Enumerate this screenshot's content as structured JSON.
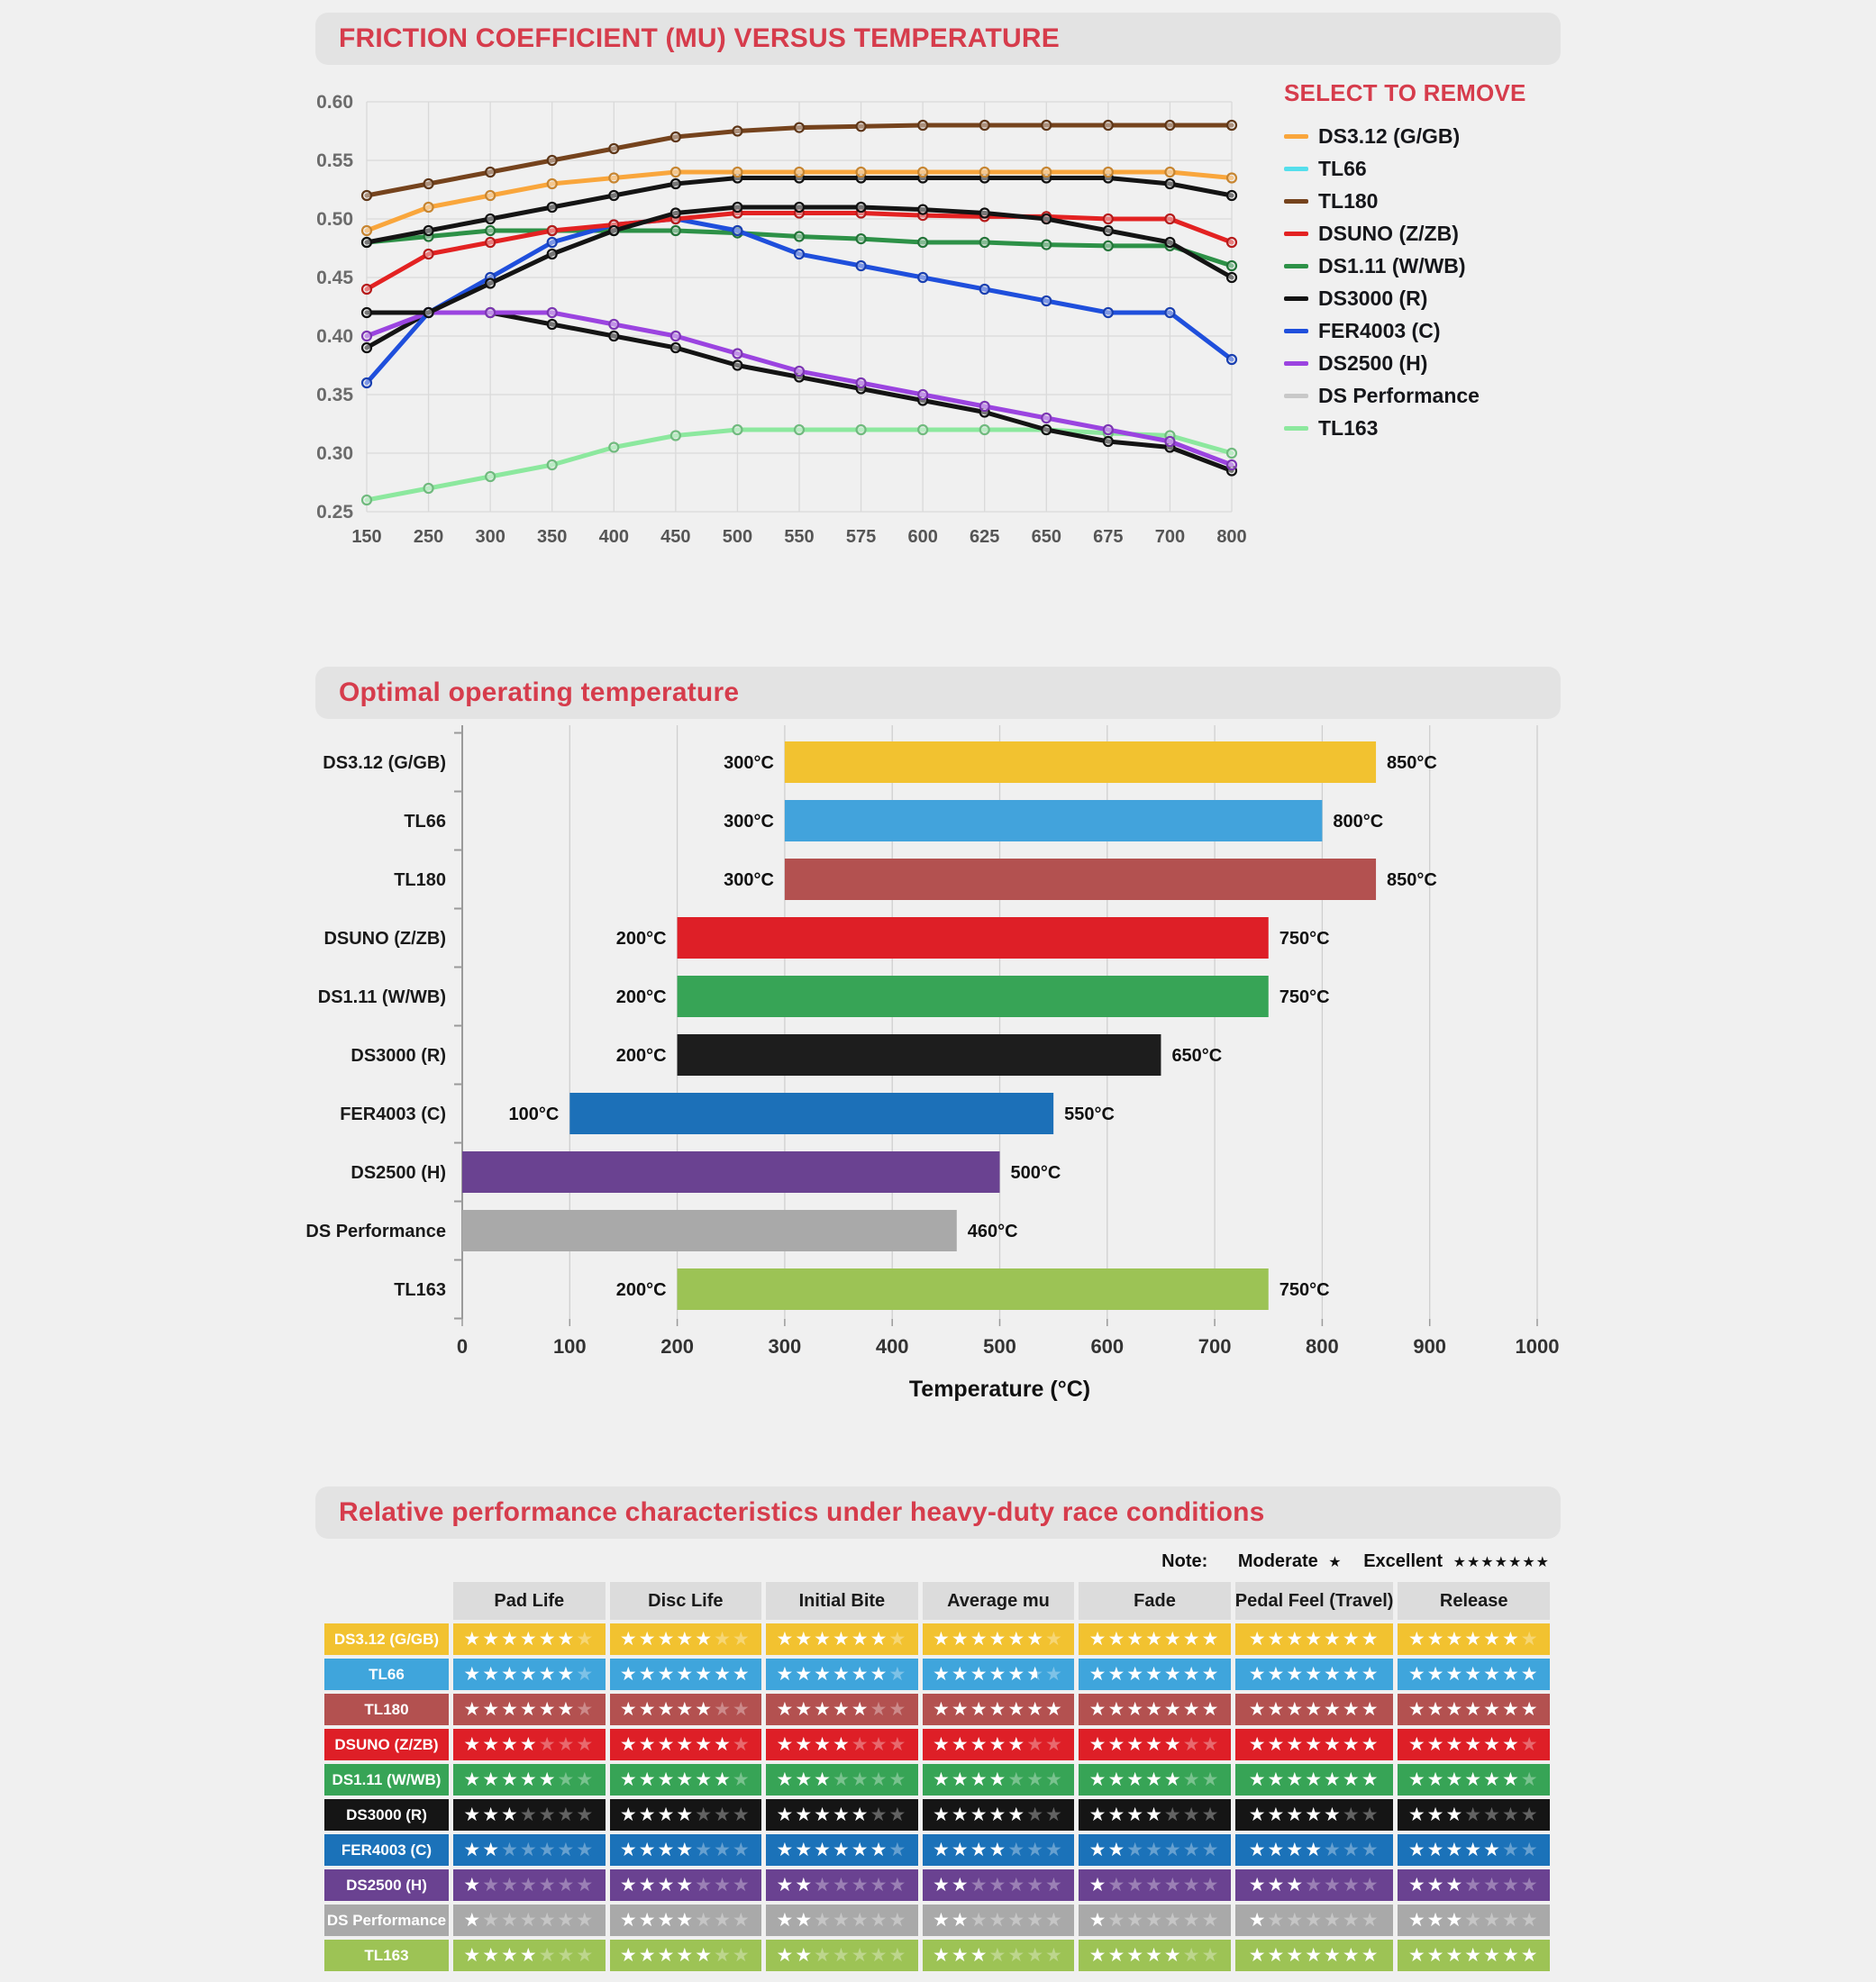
{
  "page": {
    "accent_color": "#d63c4c",
    "background_color": "#f0f0f0"
  },
  "chart_data": [
    {
      "type": "line",
      "title": "FRICTION COEFFICIENT (MU) VERSUS TEMPERATURE",
      "legend_title": "SELECT TO REMOVE",
      "legend_position": "right",
      "grid": true,
      "xlabel": "",
      "ylabel": "",
      "ylim": [
        0.25,
        0.6
      ],
      "y_ticks": [
        0.25,
        0.3,
        0.35,
        0.4,
        0.45,
        0.5,
        0.55,
        0.6
      ],
      "x_categories": [
        150,
        250,
        300,
        350,
        400,
        450,
        500,
        550,
        575,
        600,
        625,
        650,
        675,
        700,
        800
      ],
      "series": [
        {
          "name": "DS3.12 (G/GB)",
          "legend_color": "#f9a63c",
          "line_color": "#f9a63c",
          "values": [
            0.49,
            0.51,
            0.52,
            0.53,
            0.535,
            0.54,
            0.54,
            0.54,
            0.54,
            0.54,
            0.54,
            0.54,
            0.54,
            0.54,
            0.535
          ]
        },
        {
          "name": "TL66",
          "legend_color": "#55dfec",
          "line_color": "#141414",
          "values": [
            0.48,
            0.49,
            0.5,
            0.51,
            0.52,
            0.53,
            0.535,
            0.535,
            0.535,
            0.535,
            0.535,
            0.535,
            0.535,
            0.53,
            0.52
          ]
        },
        {
          "name": "TL180",
          "legend_color": "#75431d",
          "line_color": "#75431d",
          "values": [
            0.52,
            0.53,
            0.54,
            0.55,
            0.56,
            0.57,
            0.575,
            0.578,
            0.579,
            0.58,
            0.58,
            0.58,
            0.58,
            0.58,
            0.58
          ]
        },
        {
          "name": "DSUNO (Z/ZB)",
          "legend_color": "#e32222",
          "line_color": "#e32222",
          "values": [
            0.44,
            0.47,
            0.48,
            0.49,
            0.495,
            0.5,
            0.505,
            0.505,
            0.505,
            0.503,
            0.502,
            0.502,
            0.5,
            0.5,
            0.48
          ]
        },
        {
          "name": "DS1.11 (W/WB)",
          "legend_color": "#2d9147",
          "line_color": "#2d9147",
          "values": [
            0.48,
            0.485,
            0.49,
            0.49,
            0.49,
            0.49,
            0.488,
            0.485,
            0.483,
            0.48,
            0.48,
            0.478,
            0.477,
            0.477,
            0.46
          ]
        },
        {
          "name": "DS3000 (R)",
          "legend_color": "#141414",
          "line_color": "#141414",
          "values": [
            0.42,
            0.42,
            0.445,
            0.47,
            0.49,
            0.505,
            0.51,
            0.51,
            0.51,
            0.508,
            0.505,
            0.5,
            0.49,
            0.48,
            0.45
          ]
        },
        {
          "name": "FER4003 (C)",
          "legend_color": "#1f4fdc",
          "line_color": "#1f4fdc",
          "values": [
            0.36,
            0.42,
            0.45,
            0.48,
            0.495,
            0.5,
            0.49,
            0.47,
            0.46,
            0.45,
            0.44,
            0.43,
            0.42,
            0.42,
            0.38
          ]
        },
        {
          "name": "DS2500 (H)",
          "legend_color": "#9b44e0",
          "line_color": "#9b44e0",
          "values": [
            0.4,
            0.42,
            0.42,
            0.42,
            0.41,
            0.4,
            0.385,
            0.37,
            0.36,
            0.35,
            0.34,
            0.33,
            0.32,
            0.31,
            0.29
          ]
        },
        {
          "name": "DS Performance",
          "legend_color": "#c8c8c8",
          "line_color": "#141414",
          "values": [
            0.39,
            0.42,
            0.42,
            0.41,
            0.4,
            0.39,
            0.375,
            0.365,
            0.355,
            0.345,
            0.335,
            0.32,
            0.31,
            0.305,
            0.285
          ]
        },
        {
          "name": "TL163",
          "legend_color": "#8ce89e",
          "line_color": "#8ce89e",
          "values": [
            0.26,
            0.27,
            0.28,
            0.29,
            0.305,
            0.315,
            0.32,
            0.32,
            0.32,
            0.32,
            0.32,
            0.32,
            0.317,
            0.315,
            0.3
          ]
        }
      ]
    },
    {
      "type": "bar",
      "orientation": "horizontal",
      "title": "Optimal operating temperature",
      "xlabel": "Temperature (°C)",
      "xlim": [
        0,
        1000
      ],
      "x_ticks": [
        0,
        100,
        200,
        300,
        400,
        500,
        600,
        700,
        800,
        900,
        1000
      ],
      "bars": [
        {
          "label": "DS3.12 (G/GB)",
          "range": [
            300,
            850
          ],
          "color": "#f2c230",
          "min_label": "300°C",
          "max_label": "850°C"
        },
        {
          "label": "TL66",
          "range": [
            300,
            800
          ],
          "color": "#42a3dc",
          "min_label": "300°C",
          "max_label": "800°C"
        },
        {
          "label": "TL180",
          "range": [
            300,
            850
          ],
          "color": "#b35150",
          "min_label": "300°C",
          "max_label": "850°C"
        },
        {
          "label": "DSUNO (Z/ZB)",
          "range": [
            200,
            750
          ],
          "color": "#de1f27",
          "min_label": "200°C",
          "max_label": "750°C"
        },
        {
          "label": "DS1.11 (W/WB)",
          "range": [
            200,
            750
          ],
          "color": "#37a456",
          "min_label": "200°C",
          "max_label": "750°C"
        },
        {
          "label": "DS3000 (R)",
          "range": [
            200,
            650
          ],
          "color": "#1d1d1d",
          "min_label": "200°C",
          "max_label": "650°C"
        },
        {
          "label": "FER4003 (C)",
          "range": [
            100,
            550
          ],
          "color": "#1c70b8",
          "min_label": "100°C",
          "max_label": "550°C"
        },
        {
          "label": "DS2500 (H)",
          "range": [
            0,
            500
          ],
          "color": "#6a4291",
          "min_label": "",
          "max_label": "500°C"
        },
        {
          "label": "DS Performance",
          "range": [
            0,
            460
          ],
          "color": "#a9a9a9",
          "min_label": "",
          "max_label": "460°C"
        },
        {
          "label": "TL163",
          "range": [
            200,
            750
          ],
          "color": "#9cc355",
          "min_label": "200°C",
          "max_label": "750°C"
        }
      ]
    },
    {
      "type": "table",
      "title": "Relative performance characteristics under heavy-duty race conditions",
      "note_label": "Note:",
      "note_moderate_label": "Moderate",
      "note_moderate_stars": 1,
      "note_excellent_label": "Excellent",
      "note_excellent_stars": 7,
      "max_stars": 7,
      "columns": [
        "Pad Life",
        "Disc Life",
        "Initial Bite",
        "Average mu",
        "Fade",
        "Pedal Feel (Travel)",
        "Release"
      ],
      "rows": [
        {
          "label": "DS3.12 (G/GB)",
          "color": "#f2c230",
          "ratings": [
            6,
            5,
            6,
            6,
            7,
            7,
            6
          ]
        },
        {
          "label": "TL66",
          "color": "#3fa5dc",
          "ratings": [
            6,
            7,
            6,
            5.5,
            7,
            7,
            7
          ]
        },
        {
          "label": "TL180",
          "color": "#b35150",
          "ratings": [
            6,
            5,
            5,
            7,
            7,
            7,
            7
          ]
        },
        {
          "label": "DSUNO (Z/ZB)",
          "color": "#de1f27",
          "ratings": [
            4,
            6,
            4,
            5,
            5,
            7,
            6
          ]
        },
        {
          "label": "DS1.11 (W/WB)",
          "color": "#37a456",
          "ratings": [
            5,
            6,
            3,
            4,
            5,
            7,
            6
          ]
        },
        {
          "label": "DS3000 (R)",
          "color": "#151515",
          "ratings": [
            3,
            4,
            5,
            5,
            4,
            5,
            3
          ]
        },
        {
          "label": "FER4003 (C)",
          "color": "#1b72b9",
          "ratings": [
            2,
            4,
            6,
            4,
            2,
            4,
            5
          ]
        },
        {
          "label": "DS2500 (H)",
          "color": "#6a4291",
          "ratings": [
            1,
            4,
            2,
            2,
            1,
            3,
            3
          ]
        },
        {
          "label": "DS Performance",
          "color": "#a9a9a9",
          "ratings": [
            1,
            4,
            2,
            2,
            1,
            1,
            3
          ]
        },
        {
          "label": "TL163",
          "color": "#9dc355",
          "ratings": [
            4,
            5,
            2,
            3,
            5,
            7,
            7
          ]
        }
      ]
    }
  ]
}
